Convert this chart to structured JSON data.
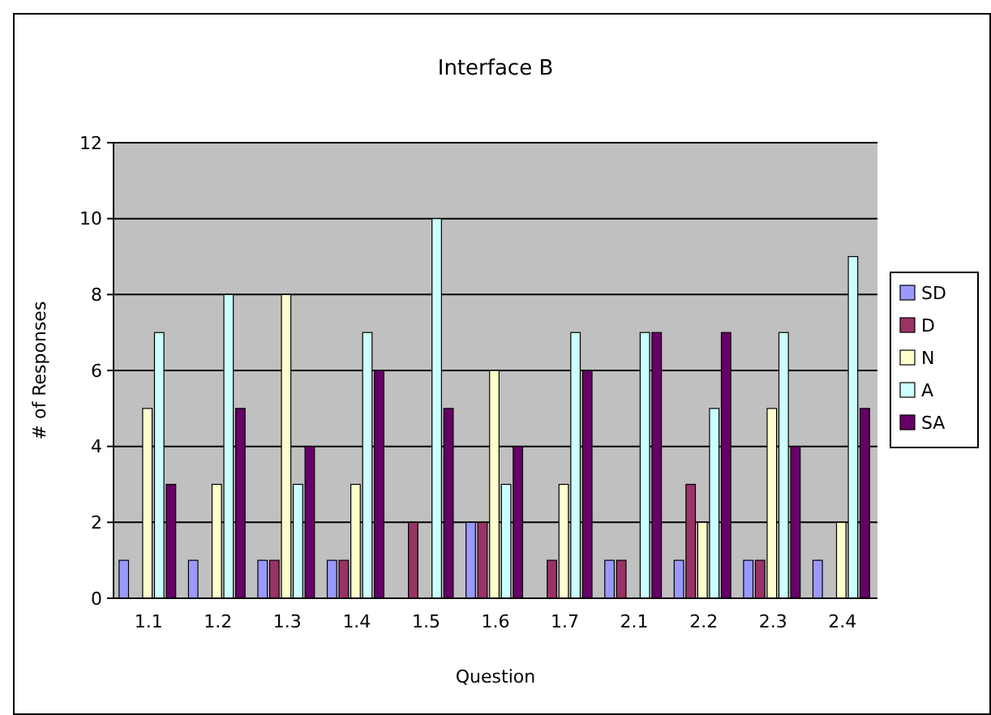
{
  "chart_data": {
    "type": "bar",
    "title": "Interface B",
    "xlabel": "Question",
    "ylabel": "# of Responses",
    "categories": [
      "1.1",
      "1.2",
      "1.3",
      "1.4",
      "1.5",
      "1.6",
      "1.7",
      "2.1",
      "2.2",
      "2.3",
      "2.4"
    ],
    "series": [
      {
        "name": "SD",
        "color": "#9999ff",
        "values": [
          1,
          1,
          1,
          1,
          0,
          2,
          0,
          1,
          1,
          1,
          1
        ]
      },
      {
        "name": "D",
        "color": "#993366",
        "values": [
          0,
          0,
          1,
          1,
          2,
          2,
          1,
          1,
          3,
          1,
          0
        ]
      },
      {
        "name": "N",
        "color": "#ffffcc",
        "values": [
          5,
          3,
          8,
          3,
          0,
          6,
          3,
          0,
          2,
          5,
          2
        ]
      },
      {
        "name": "A",
        "color": "#ccffff",
        "values": [
          7,
          8,
          3,
          7,
          10,
          3,
          7,
          7,
          5,
          7,
          9
        ]
      },
      {
        "name": "SA",
        "color": "#660066",
        "values": [
          3,
          5,
          4,
          6,
          5,
          4,
          6,
          7,
          7,
          4,
          5
        ]
      }
    ],
    "ylim": [
      0,
      12
    ],
    "yticks": [
      0,
      2,
      4,
      6,
      8,
      10,
      12
    ],
    "grid": "y",
    "legend": "right"
  }
}
